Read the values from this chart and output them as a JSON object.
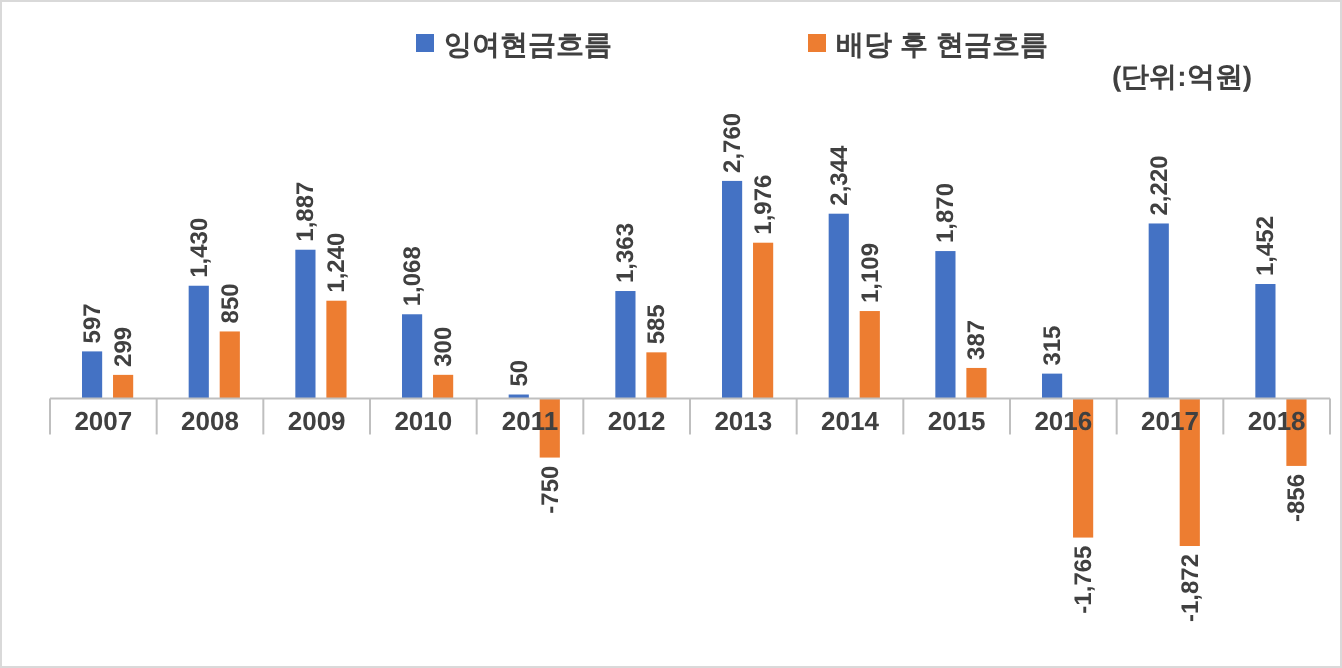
{
  "chart_data": {
    "type": "bar",
    "categories": [
      "2007",
      "2008",
      "2009",
      "2010",
      "2011",
      "2012",
      "2013",
      "2014",
      "2015",
      "2016",
      "2017",
      "2018"
    ],
    "series": [
      {
        "name": "잉여현금흐름",
        "color": "#4472c4",
        "values": [
          597,
          1430,
          1887,
          1068,
          50,
          1363,
          2760,
          2344,
          1870,
          315,
          2220,
          1452
        ],
        "value_labels": [
          "597",
          "1,430",
          "1,887",
          "1,068",
          "50",
          "1,363",
          "2,760",
          "2,344",
          "1,870",
          "315",
          "2,220",
          "1,452"
        ]
      },
      {
        "name": "배당 후 현금흐름",
        "color": "#ed7d31",
        "values": [
          299,
          850,
          1240,
          300,
          -750,
          585,
          1976,
          1109,
          387,
          -1765,
          -1872,
          -856
        ],
        "value_labels": [
          "299",
          "850",
          "1,240",
          "300",
          "-750",
          "585",
          "1,976",
          "1,109",
          "387",
          "-1,765",
          "-1,872",
          "-856"
        ]
      }
    ],
    "legend": "top",
    "grid": false,
    "annotations": [
      "(단위:억원)"
    ]
  }
}
